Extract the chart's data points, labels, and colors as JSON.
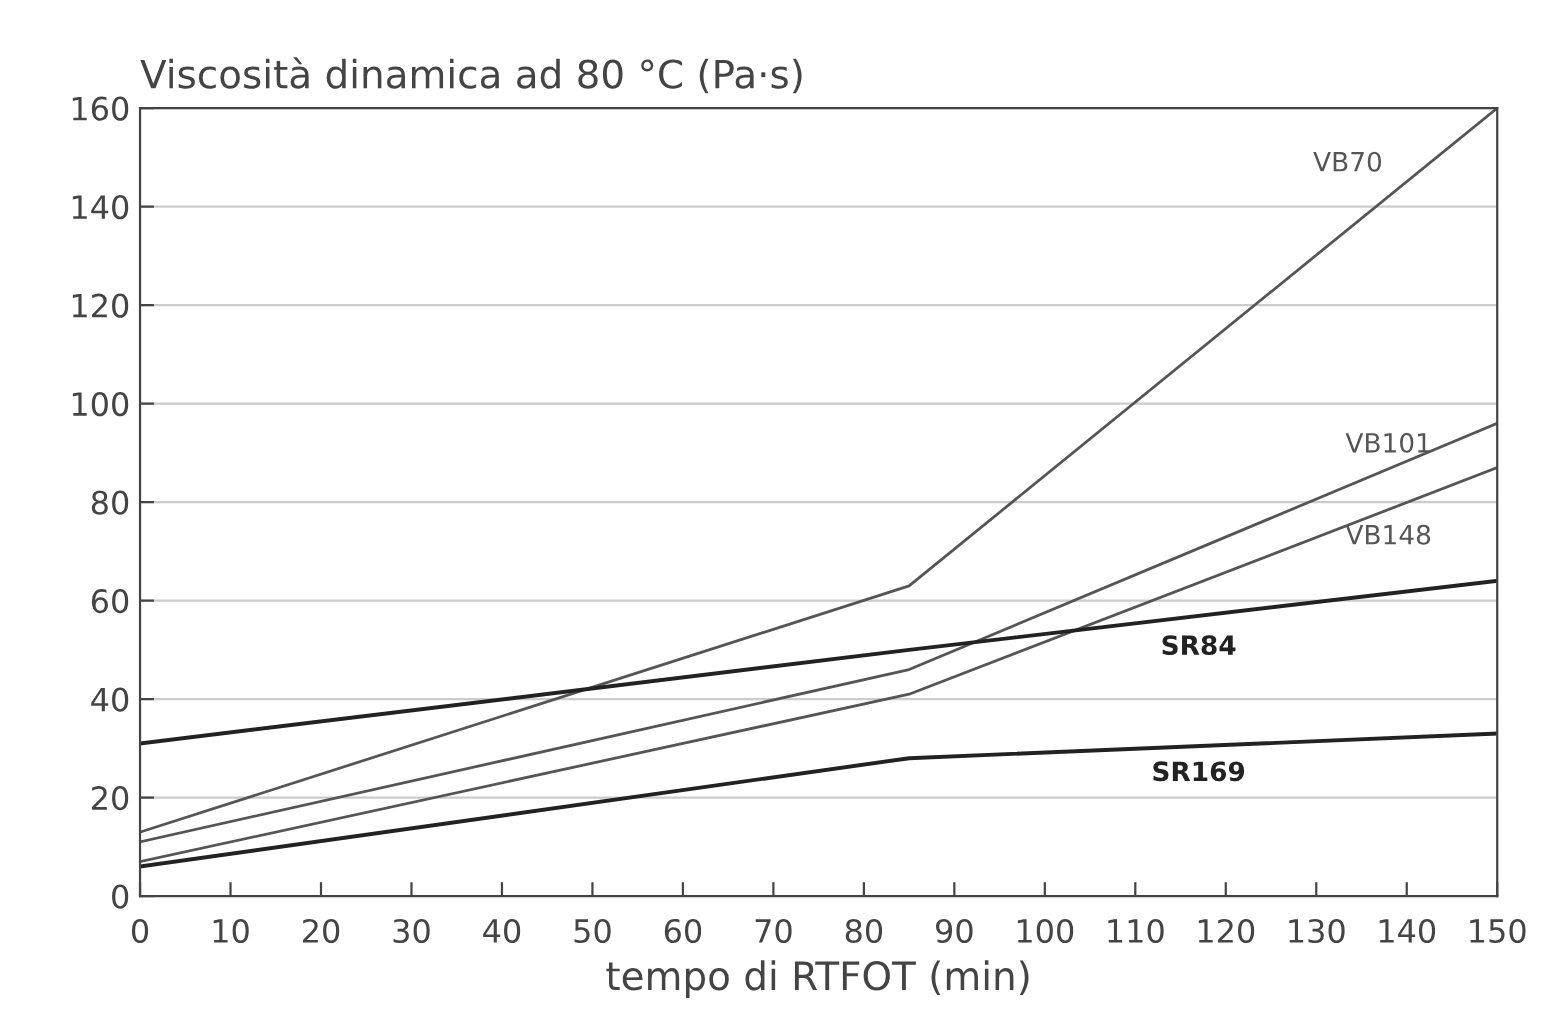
{
  "chart_data": {
    "type": "line",
    "ylabel": "Viscosità dinamica ad 80 °C (Pa·s)",
    "xlabel": "tempo di RTFOT (min)",
    "xlim": [
      0,
      150
    ],
    "xticks": [
      0,
      10,
      20,
      30,
      40,
      50,
      60,
      70,
      80,
      90,
      100,
      110,
      120,
      130,
      140,
      150
    ],
    "ylim": [
      0,
      160
    ],
    "yticks": [
      0,
      20,
      40,
      60,
      80,
      100,
      120,
      140,
      160
    ],
    "grid": "y",
    "marker": "none",
    "line_style": "solid",
    "series": [
      {
        "name": "VB70",
        "color": "#555555",
        "x": [
          0,
          85,
          150
        ],
        "values": [
          13,
          63,
          160
        ]
      },
      {
        "name": "VB101",
        "color": "#555555",
        "x": [
          0,
          85,
          150
        ],
        "values": [
          11,
          46,
          96
        ]
      },
      {
        "name": "VB148",
        "color": "#555555",
        "x": [
          0,
          85,
          150
        ],
        "values": [
          7,
          41,
          87
        ]
      },
      {
        "name": "SR84",
        "color": "#222222",
        "x": [
          0,
          85,
          150
        ],
        "values": [
          31,
          50,
          64
        ]
      },
      {
        "name": "SR169",
        "color": "#222222",
        "x": [
          0,
          85,
          150
        ],
        "values": [
          6,
          28,
          33
        ]
      }
    ]
  }
}
